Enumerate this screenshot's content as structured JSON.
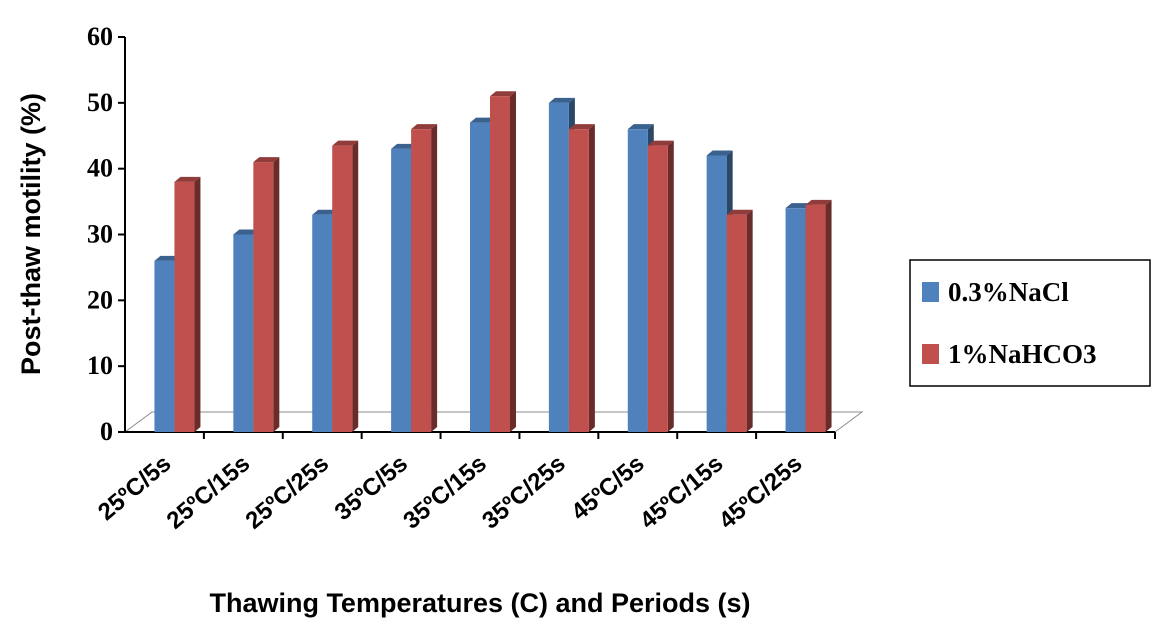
{
  "chart_data": {
    "type": "bar",
    "style": "3d-clustered-column",
    "title": "",
    "xlabel": "Thawing Temperatures (C) and Periods (s)",
    "ylabel": "Post-thaw motility (%)",
    "ylim": [
      0,
      60
    ],
    "yticks": [
      "0",
      "10",
      "20",
      "30",
      "40",
      "50",
      "60"
    ],
    "categories": [
      "25ºC/5s",
      "25ºC/15s",
      "25ºC/25s",
      "35ºC/5s",
      "35ºC/15s",
      "35ºC/25s",
      "45ºC/5s",
      "45ºC/15s",
      "45ºC/25s"
    ],
    "series": [
      {
        "name": "0.3%NaCl",
        "color": "#4F81BD",
        "values": [
          26,
          30,
          33,
          43,
          47,
          50,
          46,
          42,
          34
        ]
      },
      {
        "name": "1%NaHCO3",
        "color": "#C0504D",
        "values": [
          38,
          41,
          43.5,
          46,
          51,
          46,
          43.5,
          33,
          34.5
        ]
      }
    ],
    "grid": false,
    "legend_position": "right"
  }
}
